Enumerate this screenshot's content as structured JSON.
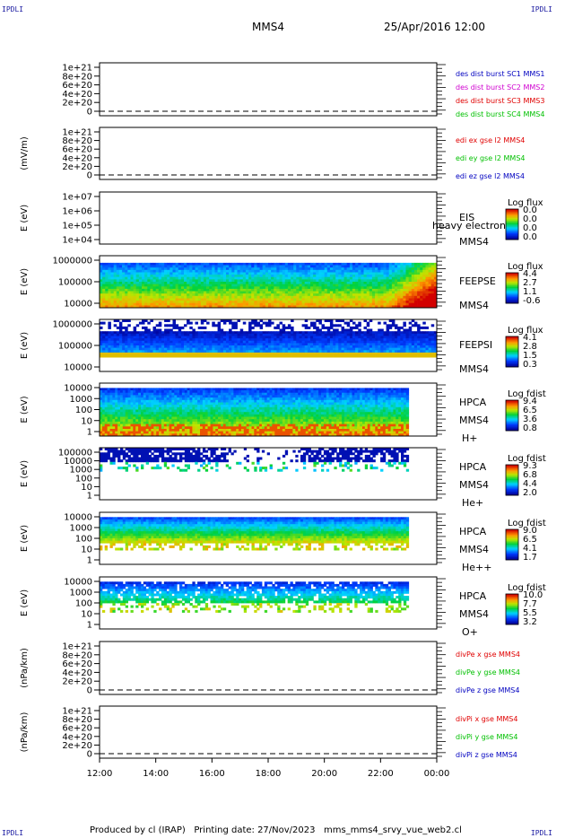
{
  "corners": {
    "tl": "IPDLI",
    "tr": "IPDLI",
    "bl": "IPDLI",
    "br": "IPDLI"
  },
  "header": {
    "spacecraft": "MMS4",
    "datetime": "25/Apr/2016 12:00"
  },
  "footer": {
    "text": "Produced by cl (IRAP)   Printing date: 27/Nov/2023   mms_mms4_srvy_vue_web2.cl"
  },
  "colors": {
    "red": "#e00000",
    "magenta": "#d000d0",
    "green": "#00c000",
    "blue": "#0000c0"
  },
  "chart_data": {
    "type": "heatmap",
    "x_ticks": [
      "12:00",
      "14:00",
      "16:00",
      "18:00",
      "20:00",
      "22:00",
      "00:00"
    ],
    "x_range_hours": [
      12,
      24
    ],
    "data_end_hours": [
      null,
      null,
      null,
      24,
      24,
      23,
      23,
      23,
      23,
      null,
      null
    ],
    "panels": [
      {
        "kind": "line",
        "ylabel": "",
        "yticks": [
          "1e+21",
          "8e+20",
          "6e+20",
          "4e+20",
          "2e+20",
          "0"
        ],
        "legend": [
          {
            "text": "des dist burst SC1 MMS1",
            "color": "#0000c0"
          },
          {
            "text": "des dist burst SC2 MMS2",
            "color": "#d000d0"
          },
          {
            "text": "des dist burst SC3 MMS3",
            "color": "#e00000"
          },
          {
            "text": "des dist burst SC4 MMS4",
            "color": "#00c000"
          }
        ]
      },
      {
        "kind": "line",
        "ylabel": "(mV/m)",
        "yticks": [
          "1e+21",
          "8e+20",
          "6e+20",
          "4e+20",
          "2e+20",
          "0"
        ],
        "legend": [
          {
            "text": "edi ex gse l2 MMS4",
            "color": "#e00000"
          },
          {
            "text": "edi ey gse l2 MMS4",
            "color": "#00c000"
          },
          {
            "text": "edi ez gse l2 MMS4",
            "color": "#0000c0"
          }
        ]
      },
      {
        "kind": "spec",
        "ylabel": "E (eV)",
        "yticks": [
          "1e+07",
          "1e+06",
          "1e+05",
          "1e+04"
        ],
        "labels": [
          "EIS",
          "MMS4"
        ],
        "overlay": "heavy electron to",
        "cbar_title": "Log flux",
        "cbar_ticks": [
          "0.0",
          "0.0",
          "0.0",
          "0.0"
        ],
        "profile": "empty"
      },
      {
        "kind": "spec",
        "ylabel": "E (eV)",
        "yticks": [
          "1000000",
          "100000",
          "10000"
        ],
        "labels": [
          "FEEPSE",
          "MMS4"
        ],
        "cbar_title": "Log flux",
        "cbar_ticks": [
          "4.4",
          "2.7",
          "1.1",
          "-0.6"
        ],
        "profile": "feepse"
      },
      {
        "kind": "spec",
        "ylabel": "E (eV)",
        "yticks": [
          "1000000",
          "100000",
          "10000"
        ],
        "labels": [
          "FEEPSI",
          "MMS4"
        ],
        "cbar_title": "Log flux",
        "cbar_ticks": [
          "4.1",
          "2.8",
          "1.5",
          "0.3"
        ],
        "profile": "feepsi"
      },
      {
        "kind": "spec",
        "ylabel": "E (eV)",
        "yticks": [
          "10000",
          "1000",
          "100",
          "10",
          "1"
        ],
        "labels": [
          "HPCA",
          "MMS4",
          "H+"
        ],
        "cbar_title": "Log fdist",
        "cbar_ticks": [
          "9.4",
          "6.5",
          "3.6",
          "0.8"
        ],
        "profile": "hplus"
      },
      {
        "kind": "spec",
        "ylabel": "E (eV)",
        "yticks": [
          "100000",
          "10000",
          "1000",
          "100",
          "10",
          "1"
        ],
        "labels": [
          "HPCA",
          "MMS4",
          "He+"
        ],
        "cbar_title": "Log fdist",
        "cbar_ticks": [
          "9.3",
          "6.8",
          "4.4",
          "2.0"
        ],
        "profile": "heplus"
      },
      {
        "kind": "spec",
        "ylabel": "E (eV)",
        "yticks": [
          "10000",
          "1000",
          "100",
          "10",
          "1"
        ],
        "labels": [
          "HPCA",
          "MMS4",
          "He++"
        ],
        "cbar_title": "Log fdist",
        "cbar_ticks": [
          "9.0",
          "6.5",
          "4.1",
          "1.7"
        ],
        "profile": "hepp"
      },
      {
        "kind": "spec",
        "ylabel": "E (eV)",
        "yticks": [
          "10000",
          "1000",
          "100",
          "10",
          "1"
        ],
        "labels": [
          "HPCA",
          "MMS4",
          "O+"
        ],
        "cbar_title": "Log fdist",
        "cbar_ticks": [
          "10.0",
          "7.7",
          "5.5",
          "3.2"
        ],
        "profile": "oplus"
      },
      {
        "kind": "line",
        "ylabel": "(nPa/km)",
        "yticks": [
          "1e+21",
          "8e+20",
          "6e+20",
          "4e+20",
          "2e+20",
          "0"
        ],
        "legend": [
          {
            "text": "divPe x gse MMS4",
            "color": "#e00000"
          },
          {
            "text": "divPe y gse MMS4",
            "color": "#00c000"
          },
          {
            "text": "divPe z gse MMS4",
            "color": "#0000c0"
          }
        ]
      },
      {
        "kind": "line",
        "ylabel": "(nPa/km)",
        "yticks": [
          "1e+21",
          "8e+20",
          "6e+20",
          "4e+20",
          "2e+20",
          "0"
        ],
        "legend": [
          {
            "text": "divPi x gse MMS4",
            "color": "#e00000"
          },
          {
            "text": "divPi y gse MMS4",
            "color": "#00c000"
          },
          {
            "text": "divPi z gse MMS4",
            "color": "#0000c0"
          }
        ]
      }
    ]
  }
}
